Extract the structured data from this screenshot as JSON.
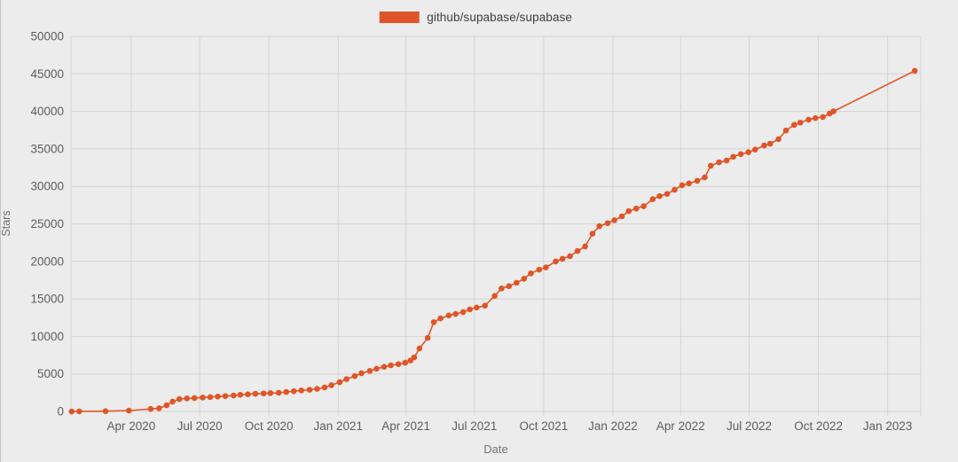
{
  "page": {
    "background": "#ececec",
    "left_border_color": "#c6c6c6"
  },
  "legend": {
    "label": "github/supabase/supabase",
    "swatch_color": "#e05527"
  },
  "chart_data": {
    "type": "line",
    "title": "",
    "xlabel": "Date",
    "ylabel": "Stars",
    "grid": true,
    "legend_position": "top-center",
    "marker": "circle",
    "line_color": "#e05527",
    "gridline_color": "#d4d4d4",
    "tick_label_color": "#5e5e5e",
    "y_domain": [
      0,
      50000
    ],
    "y_ticks": [
      0,
      5000,
      10000,
      15000,
      20000,
      25000,
      30000,
      35000,
      40000,
      45000,
      50000
    ],
    "x_domain": [
      "2020-01-12",
      "2023-02-14"
    ],
    "x_ticks": [
      {
        "date": "2020-04-01",
        "label": "Apr 2020"
      },
      {
        "date": "2020-07-01",
        "label": "Jul 2020"
      },
      {
        "date": "2020-10-01",
        "label": "Oct 2020"
      },
      {
        "date": "2021-01-01",
        "label": "Jan 2021"
      },
      {
        "date": "2021-04-01",
        "label": "Apr 2021"
      },
      {
        "date": "2021-07-01",
        "label": "Jul 2021"
      },
      {
        "date": "2021-10-01",
        "label": "Oct 2021"
      },
      {
        "date": "2022-01-01",
        "label": "Jan 2022"
      },
      {
        "date": "2022-04-01",
        "label": "Apr 2022"
      },
      {
        "date": "2022-07-01",
        "label": "Jul 2022"
      },
      {
        "date": "2022-10-01",
        "label": "Oct 2022"
      },
      {
        "date": "2023-01-01",
        "label": "Jan 2023"
      }
    ],
    "series": [
      {
        "name": "github/supabase/supabase",
        "color": "#e05527",
        "points": [
          [
            "2020-01-13",
            0
          ],
          [
            "2020-01-23",
            15
          ],
          [
            "2020-02-27",
            40
          ],
          [
            "2020-03-29",
            120
          ],
          [
            "2020-04-27",
            330
          ],
          [
            "2020-05-08",
            430
          ],
          [
            "2020-05-18",
            820
          ],
          [
            "2020-05-26",
            1310
          ],
          [
            "2020-06-04",
            1650
          ],
          [
            "2020-06-14",
            1740
          ],
          [
            "2020-06-24",
            1790
          ],
          [
            "2020-07-05",
            1860
          ],
          [
            "2020-07-15",
            1910
          ],
          [
            "2020-07-25",
            1990
          ],
          [
            "2020-08-04",
            2040
          ],
          [
            "2020-08-15",
            2130
          ],
          [
            "2020-08-24",
            2220
          ],
          [
            "2020-09-03",
            2280
          ],
          [
            "2020-09-13",
            2350
          ],
          [
            "2020-09-24",
            2400
          ],
          [
            "2020-10-03",
            2450
          ],
          [
            "2020-10-14",
            2500
          ],
          [
            "2020-10-24",
            2600
          ],
          [
            "2020-11-03",
            2700
          ],
          [
            "2020-11-13",
            2800
          ],
          [
            "2020-11-24",
            2900
          ],
          [
            "2020-12-04",
            3000
          ],
          [
            "2020-12-14",
            3200
          ],
          [
            "2020-12-23",
            3500
          ],
          [
            "2021-01-03",
            3900
          ],
          [
            "2021-01-12",
            4300
          ],
          [
            "2021-01-23",
            4700
          ],
          [
            "2021-02-01",
            5100
          ],
          [
            "2021-02-12",
            5400
          ],
          [
            "2021-02-21",
            5700
          ],
          [
            "2021-03-03",
            5950
          ],
          [
            "2021-03-12",
            6150
          ],
          [
            "2021-03-22",
            6300
          ],
          [
            "2021-03-31",
            6500
          ],
          [
            "2021-04-07",
            6800
          ],
          [
            "2021-04-12",
            7200
          ],
          [
            "2021-04-19",
            8400
          ],
          [
            "2021-04-30",
            9800
          ],
          [
            "2021-05-08",
            11900
          ],
          [
            "2021-05-17",
            12400
          ],
          [
            "2021-05-28",
            12800
          ],
          [
            "2021-06-06",
            13000
          ],
          [
            "2021-06-16",
            13250
          ],
          [
            "2021-06-25",
            13600
          ],
          [
            "2021-07-04",
            13850
          ],
          [
            "2021-07-15",
            14100
          ],
          [
            "2021-07-28",
            15400
          ],
          [
            "2021-08-06",
            16400
          ],
          [
            "2021-08-16",
            16700
          ],
          [
            "2021-08-26",
            17150
          ],
          [
            "2021-09-05",
            17700
          ],
          [
            "2021-09-14",
            18400
          ],
          [
            "2021-09-25",
            18900
          ],
          [
            "2021-10-04",
            19200
          ],
          [
            "2021-10-17",
            20000
          ],
          [
            "2021-10-26",
            20350
          ],
          [
            "2021-11-05",
            20700
          ],
          [
            "2021-11-15",
            21400
          ],
          [
            "2021-11-25",
            22000
          ],
          [
            "2021-12-05",
            23700
          ],
          [
            "2021-12-14",
            24700
          ],
          [
            "2021-12-25",
            25100
          ],
          [
            "2022-01-03",
            25500
          ],
          [
            "2022-01-13",
            26000
          ],
          [
            "2022-01-22",
            26700
          ],
          [
            "2022-02-01",
            27050
          ],
          [
            "2022-02-11",
            27350
          ],
          [
            "2022-02-23",
            28300
          ],
          [
            "2022-03-04",
            28700
          ],
          [
            "2022-03-14",
            29000
          ],
          [
            "2022-03-24",
            29550
          ],
          [
            "2022-04-03",
            30150
          ],
          [
            "2022-04-12",
            30400
          ],
          [
            "2022-04-23",
            30750
          ],
          [
            "2022-05-03",
            31200
          ],
          [
            "2022-05-11",
            32750
          ],
          [
            "2022-05-22",
            33200
          ],
          [
            "2022-06-01",
            33450
          ],
          [
            "2022-06-10",
            33950
          ],
          [
            "2022-06-20",
            34300
          ],
          [
            "2022-06-30",
            34550
          ],
          [
            "2022-07-09",
            34900
          ],
          [
            "2022-07-21",
            35450
          ],
          [
            "2022-07-29",
            35700
          ],
          [
            "2022-08-09",
            36300
          ],
          [
            "2022-08-19",
            37450
          ],
          [
            "2022-08-30",
            38200
          ],
          [
            "2022-09-07",
            38500
          ],
          [
            "2022-09-18",
            38900
          ],
          [
            "2022-09-27",
            39100
          ],
          [
            "2022-10-07",
            39250
          ],
          [
            "2022-10-16",
            39700
          ],
          [
            "2022-10-21",
            40000
          ],
          [
            "2023-02-06",
            45400
          ]
        ]
      }
    ]
  }
}
